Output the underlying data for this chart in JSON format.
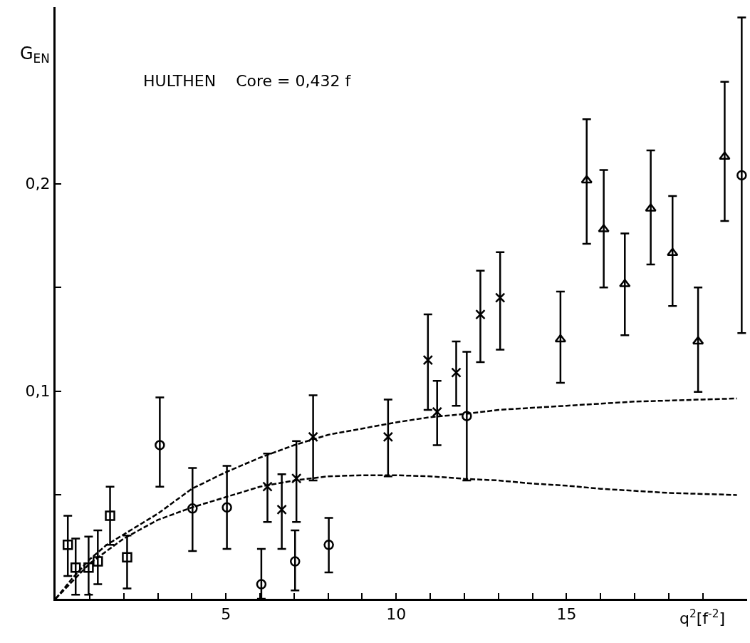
{
  "chart_data": {
    "type": "scatter",
    "xlabel": "q$^{2}$[f$^{-2}$]",
    "ylabel": "G$_{EN}$",
    "annotations": [
      "HULTHEN    Core = 0,432 f"
    ],
    "xlim": [
      0,
      20.3
    ],
    "ylim": [
      0,
      0.285
    ],
    "xticks": [
      {
        "value": 1,
        "label": null
      },
      {
        "value": 2,
        "label": null
      },
      {
        "value": 3,
        "label": null
      },
      {
        "value": 4,
        "label": null
      },
      5,
      {
        "value": 6,
        "label": null
      },
      {
        "value": 7,
        "label": null
      },
      {
        "value": 8,
        "label": null
      },
      {
        "value": 9,
        "label": null
      },
      10,
      {
        "value": 11,
        "label": null
      },
      {
        "value": 12,
        "label": null
      },
      {
        "value": 13,
        "label": null
      },
      {
        "value": 14,
        "label": null
      },
      15,
      {
        "value": 16,
        "label": null
      },
      {
        "value": 17,
        "label": null
      },
      {
        "value": 18,
        "label": null
      },
      {
        "value": 19,
        "label": null
      }
    ],
    "yticks": [
      {
        "value": 0.05,
        "label": null
      },
      {
        "value": 0.1,
        "label": "0,1"
      },
      {
        "value": 0.15,
        "label": null
      },
      {
        "value": 0.2,
        "label": "0,2"
      }
    ],
    "grid": false,
    "series": [
      {
        "type": "line",
        "color": "#000000",
        "line_style": "dashed",
        "x": [
          0,
          0.5,
          1,
          1.5,
          2,
          3,
          4,
          5,
          6,
          7,
          8,
          9,
          10,
          11,
          12,
          13,
          14,
          15,
          16,
          17,
          18,
          19,
          20
        ],
        "values": [
          0,
          0.01,
          0.019,
          0.026,
          0.031,
          0.041,
          0.053,
          0.061,
          0.068,
          0.074,
          0.079,
          0.082,
          0.085,
          0.0875,
          0.089,
          0.091,
          0.092,
          0.093,
          0.094,
          0.095,
          0.0955,
          0.096,
          0.0965
        ]
      },
      {
        "type": "line",
        "color": "#000000",
        "line_style": "dashed",
        "x": [
          0,
          1,
          2,
          3,
          4,
          5,
          6,
          7,
          8,
          9,
          10,
          11,
          12,
          13,
          14,
          15,
          16,
          17,
          18,
          19,
          20
        ],
        "values": [
          0,
          0.017,
          0.029,
          0.038,
          0.044,
          0.049,
          0.054,
          0.057,
          0.059,
          0.0595,
          0.0595,
          0.059,
          0.0578,
          0.057,
          0.0555,
          0.0545,
          0.053,
          0.052,
          0.051,
          0.0505,
          0.05
        ]
      },
      {
        "color": "#000000",
        "marker": "square",
        "x": [
          0.36,
          0.59,
          0.97,
          1.6,
          2.1
        ],
        "values": [
          0.026,
          0.015,
          0.015,
          0.04,
          0.02
        ],
        "errors": [
          [
            0.011,
            0.04
          ],
          [
            0.002,
            0.029
          ],
          [
            0.002,
            0.03
          ],
          [
            0.026,
            0.054
          ],
          [
            0.005,
            0.0305
          ]
        ]
      },
      {
        "color": "#000000",
        "marker": "square",
        "x": [
          1.24
        ],
        "values": [
          0.018
        ],
        "errors": [
          [
            0.007,
            0.033
          ]
        ]
      },
      {
        "color": "#000000",
        "marker": "circle",
        "x": [
          3.06,
          4.02,
          5.03
        ],
        "values": [
          0.074,
          0.0435,
          0.044
        ],
        "errors": [
          [
            0.054,
            0.097
          ],
          [
            0.023,
            0.063
          ],
          [
            0.024,
            0.064
          ]
        ]
      },
      {
        "color": "#000000",
        "marker": "circle",
        "x": [
          6.04,
          7.03,
          8.02,
          12.07,
          20.14
        ],
        "values": [
          0.007,
          0.018,
          0.026,
          0.088,
          0.204
        ],
        "errors": [
          [
            0,
            0.024
          ],
          [
            0.004,
            0.033
          ],
          [
            0.0127,
            0.039
          ],
          [
            0.057,
            0.119
          ],
          [
            0.128,
            0.28
          ]
        ]
      },
      {
        "color": "#000000",
        "marker": "cross",
        "x": [
          6.22,
          6.64,
          7.07,
          7.56,
          9.76,
          10.93,
          11.2,
          11.76,
          12.47,
          13.05
        ],
        "values": [
          0.054,
          0.043,
          0.058,
          0.078,
          0.078,
          0.115,
          0.09,
          0.109,
          0.137,
          0.145
        ],
        "errors": [
          [
            0.037,
            0.07
          ],
          [
            0.024,
            0.06
          ],
          [
            0.037,
            0.076
          ],
          [
            0.057,
            0.098
          ],
          [
            0.059,
            0.096
          ],
          [
            0.091,
            0.137
          ],
          [
            0.074,
            0.105
          ],
          [
            0.093,
            0.124
          ],
          [
            0.114,
            0.158
          ],
          [
            0.12,
            0.167
          ]
        ]
      },
      {
        "color": "#000000",
        "marker": "triangle",
        "x": [
          14.82,
          15.59,
          16.09,
          16.71,
          17.47,
          18.11,
          18.86,
          19.64
        ],
        "values": [
          0.125,
          0.2016,
          0.178,
          0.1516,
          0.188,
          0.1666,
          0.124,
          0.213
        ],
        "errors": [
          [
            0.104,
            0.148
          ],
          [
            0.171,
            0.231
          ],
          [
            0.15,
            0.2065
          ],
          [
            0.127,
            0.176
          ],
          [
            0.161,
            0.216
          ],
          [
            0.141,
            0.194
          ],
          [
            0.0997,
            0.15
          ],
          [
            0.182,
            0.249
          ]
        ]
      }
    ]
  }
}
